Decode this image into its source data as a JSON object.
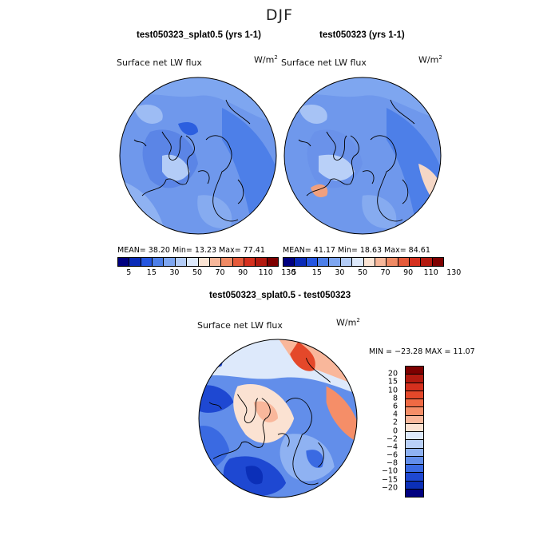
{
  "season": "DJF",
  "colors": {
    "abs_scale": [
      "#000080",
      "#0a2bb8",
      "#2556e0",
      "#4d7fe8",
      "#7ea6f0",
      "#b3ccf7",
      "#dde9fb",
      "#fbe4d4",
      "#f7b79a",
      "#ef8a64",
      "#e55a3a",
      "#d5301e",
      "#b31a10",
      "#7e0000"
    ],
    "diff_scale": [
      "#7e0000",
      "#b31a10",
      "#d5301e",
      "#e4482a",
      "#ef6a44",
      "#f58e68",
      "#f9b79b",
      "#fbe2d2",
      "#dde9fb",
      "#b9d0f8",
      "#8fb2f2",
      "#628eea",
      "#3a6ae2",
      "#1e48d2",
      "#0b2fb8",
      "#000080"
    ],
    "land_outline": "#000000"
  },
  "panels": [
    {
      "title": "test050323_splat0.5 (yrs 1-1)",
      "variable": "Surface net LW flux",
      "unit_base": "W/m",
      "unit_exp": "2",
      "stats": "MEAN=   38.20  Min=   13.23  Max=   77.41",
      "colorbar_ticks": [
        "5",
        "15",
        "30",
        "50",
        "70",
        "90",
        "110",
        "130"
      ]
    },
    {
      "title": "test050323 (yrs 1-1)",
      "variable": "Surface net LW flux",
      "unit_base": "W/m",
      "unit_exp": "2",
      "stats": "MEAN=   41.17  Min=   18.63  Max=   84.61",
      "colorbar_ticks": [
        "5",
        "15",
        "30",
        "50",
        "70",
        "90",
        "110",
        "130"
      ]
    }
  ],
  "diff_panel": {
    "title": "test050323_splat0.5 - test050323",
    "variable": "Surface net LW flux",
    "unit_base": "W/m",
    "unit_exp": "2",
    "stats": "MIN = −23.28 MAX =   11.07",
    "colorbar_ticks": [
      "20",
      "15",
      "10",
      "8",
      "6",
      "4",
      "2",
      "0",
      "−2",
      "−4",
      "−6",
      "−8",
      "−10",
      "−15",
      "−20"
    ]
  }
}
